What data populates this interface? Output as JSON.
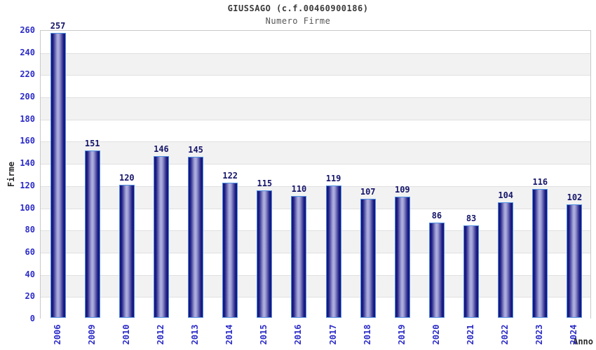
{
  "header": {
    "title": "GIUSSAGO (c.f.00460900186)",
    "subtitle": "Numero Firme"
  },
  "chart_data": {
    "type": "bar",
    "title": "GIUSSAGO (c.f.00460900186)",
    "subtitle": "Numero Firme",
    "xlabel": "Anno",
    "ylabel": "Firme",
    "categories": [
      "2006",
      "2009",
      "2010",
      "2012",
      "2013",
      "2014",
      "2015",
      "2016",
      "2017",
      "2018",
      "2019",
      "2020",
      "2021",
      "2022",
      "2023",
      "2024"
    ],
    "values": [
      257,
      151,
      120,
      146,
      145,
      122,
      115,
      110,
      119,
      107,
      109,
      86,
      83,
      104,
      116,
      102
    ],
    "ylim": [
      0,
      260
    ],
    "ytick_step": 20,
    "grid": "horizontal gridlines with alternating shaded bands",
    "legend": "none"
  },
  "colors": {
    "tick_label_blue": "#2b2bc8",
    "value_label_navy": "#15156a",
    "bar_edge_blue": "#4f8fe0",
    "bar_dark": "#15157a",
    "bar_mid": "#1c1c84",
    "bar_light": "#9d9dd4",
    "bar_highlight": "#b0b0e0",
    "band_gray": "#f2f2f2",
    "grid_line": "#e0e0e0",
    "plot_border": "#c9c9c9",
    "title_color": "#3a3a3a",
    "subtitle_color": "#555555",
    "axis_title_color": "#2a2a2a"
  }
}
